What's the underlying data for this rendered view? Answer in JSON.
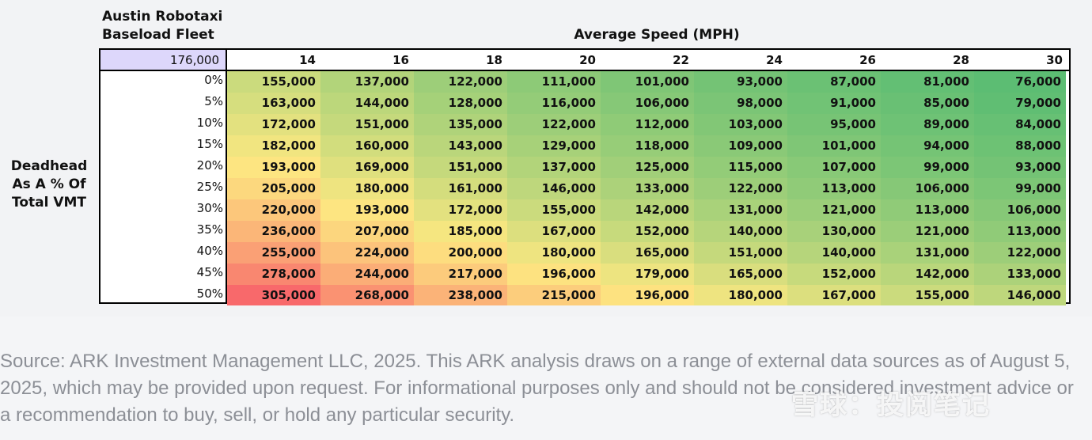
{
  "header": {
    "fleet_title_line1": "Austin Robotaxi",
    "fleet_title_line2": "Baseload Fleet",
    "col_header": "Average Speed (MPH)",
    "row_header_line1": "Deadhead",
    "row_header_line2": "As A % Of",
    "row_header_line3": "Total VMT",
    "base_value": "176,000"
  },
  "colors": {
    "low": "#5cbd73",
    "mid": "#fde881",
    "high": "#f8696b",
    "base_cell": "#ddd7fb"
  },
  "chart_data": {
    "type": "heatmap",
    "x_label": "Average Speed (MPH)",
    "y_label": "Deadhead As A % Of Total VMT",
    "x": [
      "14",
      "16",
      "18",
      "20",
      "22",
      "24",
      "26",
      "28",
      "30"
    ],
    "y": [
      "0%",
      "5%",
      "10%",
      "15%",
      "20%",
      "25%",
      "30%",
      "35%",
      "40%",
      "45%",
      "50%"
    ],
    "values": [
      [
        155000,
        137000,
        122000,
        111000,
        101000,
        93000,
        87000,
        81000,
        76000
      ],
      [
        163000,
        144000,
        128000,
        116000,
        106000,
        98000,
        91000,
        85000,
        79000
      ],
      [
        172000,
        151000,
        135000,
        122000,
        112000,
        103000,
        95000,
        89000,
        84000
      ],
      [
        182000,
        160000,
        143000,
        129000,
        118000,
        109000,
        101000,
        94000,
        88000
      ],
      [
        193000,
        169000,
        151000,
        137000,
        125000,
        115000,
        107000,
        99000,
        93000
      ],
      [
        205000,
        180000,
        161000,
        146000,
        133000,
        122000,
        113000,
        106000,
        99000
      ],
      [
        220000,
        193000,
        172000,
        155000,
        142000,
        131000,
        121000,
        113000,
        106000
      ],
      [
        236000,
        207000,
        185000,
        167000,
        152000,
        140000,
        130000,
        121000,
        113000
      ],
      [
        255000,
        224000,
        200000,
        180000,
        165000,
        151000,
        140000,
        131000,
        122000
      ],
      [
        278000,
        244000,
        217000,
        196000,
        179000,
        165000,
        152000,
        142000,
        133000
      ],
      [
        305000,
        268000,
        238000,
        215000,
        196000,
        180000,
        167000,
        155000,
        146000
      ]
    ]
  },
  "footer": {
    "source_note": "Source: ARK Investment Management LLC, 2025. This ARK analysis draws on a range of external data sources as of August 5, 2025, which may be provided upon request. For informational purposes only and should not be considered investment advice or a recommendation to buy, sell, or hold any particular security.",
    "watermark": "雪球：投阅笔记"
  }
}
